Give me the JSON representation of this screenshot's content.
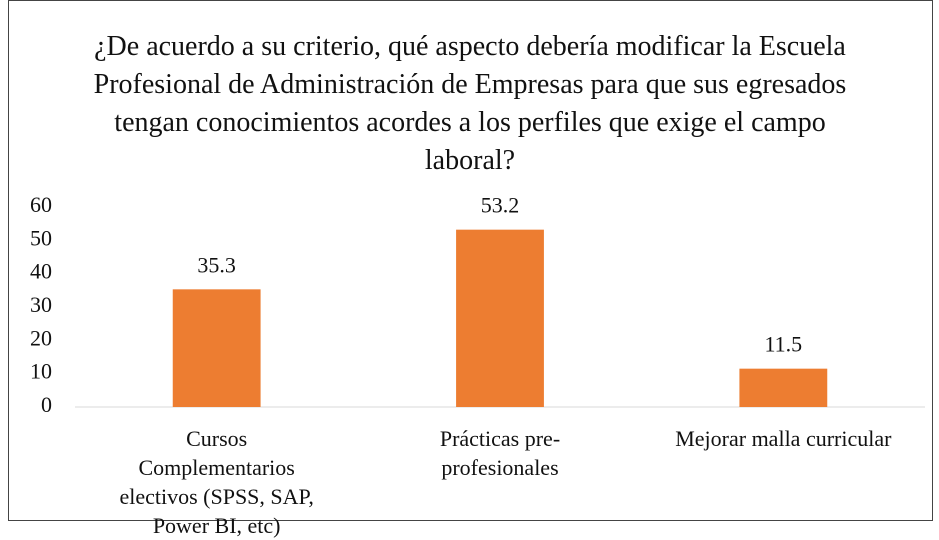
{
  "chart_data": {
    "type": "bar",
    "title": "¿De acuerdo a su criterio, qué aspecto debería modificar la Escuela Profesional de Administración de Empresas para que sus egresados tengan conocimientos acordes a los perfiles que exige el campo laboral?",
    "categories": [
      "Cursos Complementarios electivos (SPSS, SAP, Power BI, etc)",
      "Prácticas pre-profesionales",
      "Mejorar malla curricular"
    ],
    "values": [
      35.3,
      53.2,
      11.5
    ],
    "color": "#ed7d31",
    "ylim": [
      0,
      60
    ],
    "yticks": [
      0,
      10,
      20,
      30,
      40,
      50,
      60
    ],
    "grid": false
  }
}
